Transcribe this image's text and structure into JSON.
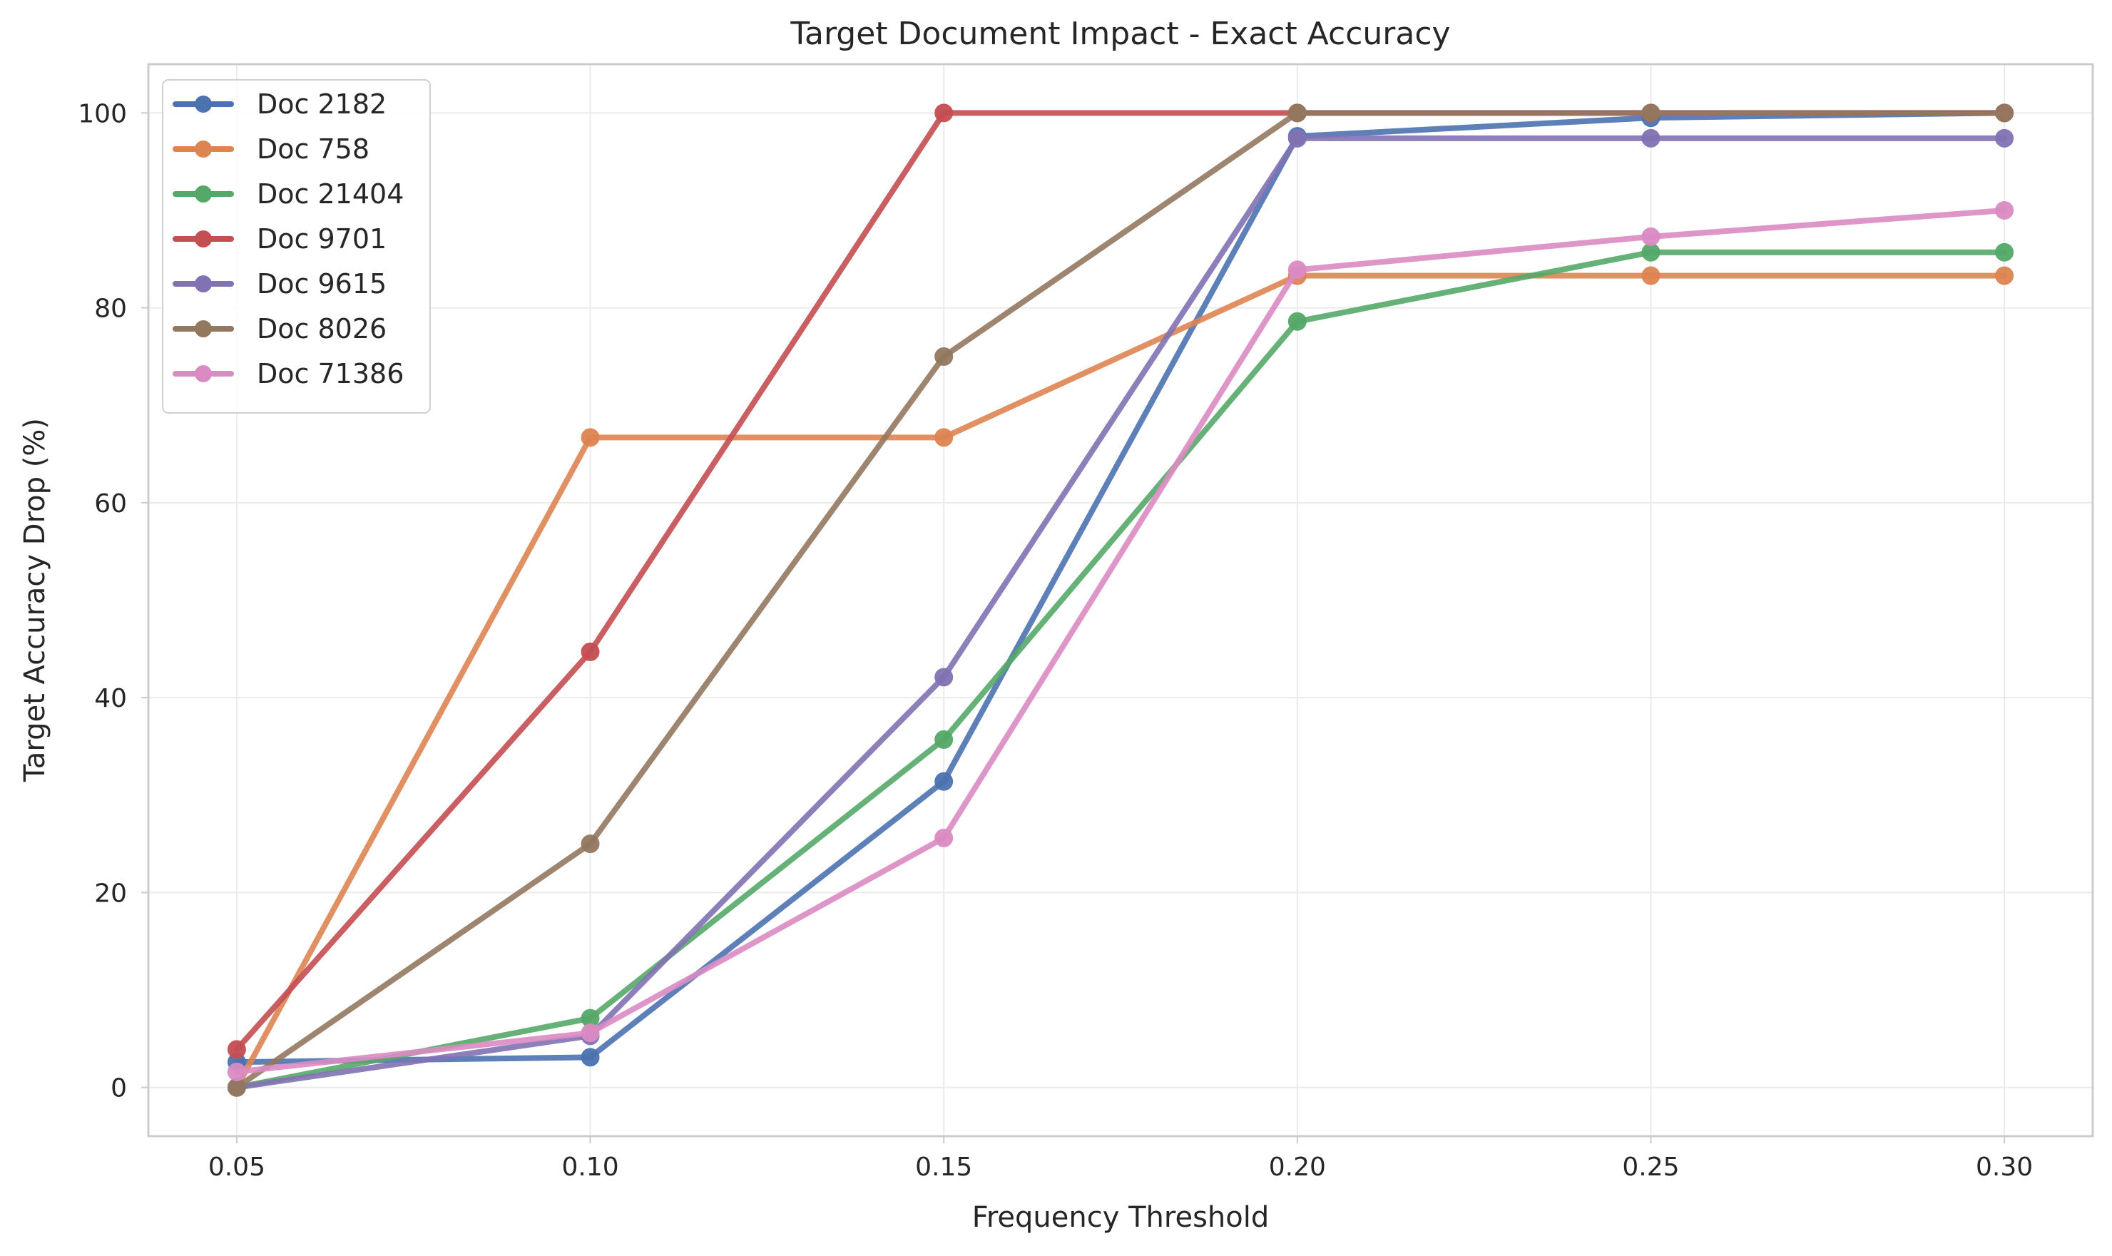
{
  "chart_data": {
    "type": "line",
    "title": "Target Document Impact - Exact Accuracy",
    "xlabel": "Frequency Threshold",
    "ylabel": "Target Accuracy Drop (%)",
    "x": [
      0.05,
      0.1,
      0.15,
      0.2,
      0.25,
      0.3
    ],
    "x_tick_labels": [
      "0.05",
      "0.10",
      "0.15",
      "0.20",
      "0.25",
      "0.30"
    ],
    "y_ticks": [
      0,
      20,
      40,
      60,
      80,
      100
    ],
    "y_tick_labels": [
      "0",
      "20",
      "40",
      "60",
      "80",
      "100"
    ],
    "xlim": [
      0.0375,
      0.3125
    ],
    "ylim": [
      -5,
      105
    ],
    "grid": true,
    "legend_position": "top-left",
    "series": [
      {
        "name": "Doc 2182",
        "color": "#4C72B0",
        "values": [
          2.6,
          3.1,
          31.4,
          97.6,
          99.5,
          100.0
        ]
      },
      {
        "name": "Doc 758",
        "color": "#DD8452",
        "values": [
          0.0,
          66.7,
          66.7,
          83.3,
          83.3,
          83.3
        ]
      },
      {
        "name": "Doc 21404",
        "color": "#55A868",
        "values": [
          0.0,
          7.1,
          35.7,
          78.6,
          85.7,
          85.7
        ]
      },
      {
        "name": "Doc 9701",
        "color": "#C44E52",
        "values": [
          3.9,
          44.7,
          100.0,
          100.0,
          100.0,
          100.0
        ]
      },
      {
        "name": "Doc 9615",
        "color": "#8172B3",
        "values": [
          0.0,
          5.3,
          42.1,
          97.4,
          97.4,
          97.4
        ]
      },
      {
        "name": "Doc 8026",
        "color": "#937860",
        "values": [
          0.0,
          25.0,
          75.0,
          100.0,
          100.0,
          100.0
        ]
      },
      {
        "name": "Doc 71386",
        "color": "#DA8BC3",
        "values": [
          1.6,
          5.6,
          25.6,
          83.9,
          87.3,
          90.0
        ]
      }
    ]
  }
}
